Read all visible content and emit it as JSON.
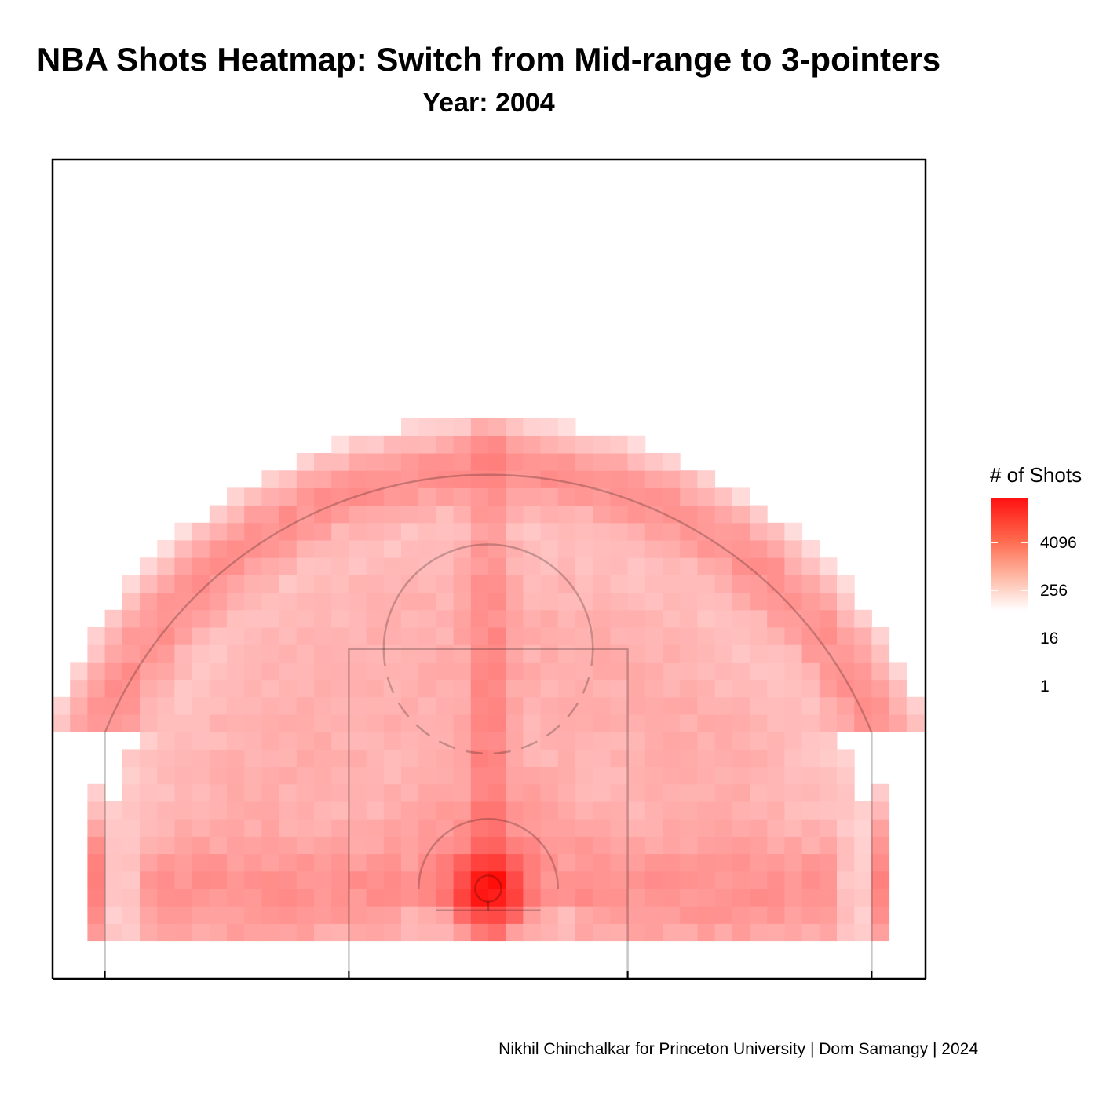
{
  "title": "NBA Shots Heatmap: Switch from Mid-range to 3-pointers",
  "subtitle": "Year: 2004",
  "caption": "Nikhil Chinchalkar for Princeton University | Dom Samangy | 2024",
  "legend": {
    "title": "# of Shots",
    "ticks": [
      "4096",
      "256",
      "16",
      "1"
    ],
    "low_color": "#ffffff",
    "high_color": "#ff1010",
    "scale": "log"
  },
  "chart_data": {
    "type": "heatmap",
    "title": "NBA Shots Heatmap: Switch from Mid-range to 3-pointers",
    "subtitle": "Year: 2004",
    "color_scale": "log",
    "legend_title": "# of Shots",
    "legend_ticks": [
      4096,
      256,
      16,
      1
    ],
    "legend_placement": "right",
    "x_range": [
      -25,
      25
    ],
    "y_range": [
      -4,
      43
    ],
    "grid": false,
    "court_lines": [
      "three-point-line",
      "free-throw-lane",
      "free-throw-circle",
      "restricted-area",
      "rim",
      "backboard"
    ],
    "hotspots": [
      {
        "zone": "rim",
        "x": 0,
        "y": 0,
        "count": 16000
      },
      {
        "zone": "paint-center",
        "x": 0,
        "y": 5,
        "count": 1000
      },
      {
        "zone": "paint",
        "x": -4,
        "y": 4,
        "count": 500
      },
      {
        "zone": "paint",
        "x": 4,
        "y": 4,
        "count": 500
      },
      {
        "zone": "left-corner-3",
        "x": -22.5,
        "y": 0,
        "count": 600
      },
      {
        "zone": "right-corner-3",
        "x": 22.5,
        "y": 0,
        "count": 600
      },
      {
        "zone": "left-baseline-mid",
        "x": -15,
        "y": 0,
        "count": 450
      },
      {
        "zone": "right-baseline-mid",
        "x": 15,
        "y": 0,
        "count": 450
      },
      {
        "zone": "left-wing-mid",
        "x": -12,
        "y": 14,
        "count": 350
      },
      {
        "zone": "right-wing-mid",
        "x": 12,
        "y": 14,
        "count": 350
      },
      {
        "zone": "top-of-key-3",
        "x": 0,
        "y": 25,
        "count": 400
      },
      {
        "zone": "left-wing-3",
        "x": -17,
        "y": 18,
        "count": 380
      },
      {
        "zone": "right-wing-3",
        "x": 17,
        "y": 18,
        "count": 380
      }
    ]
  }
}
